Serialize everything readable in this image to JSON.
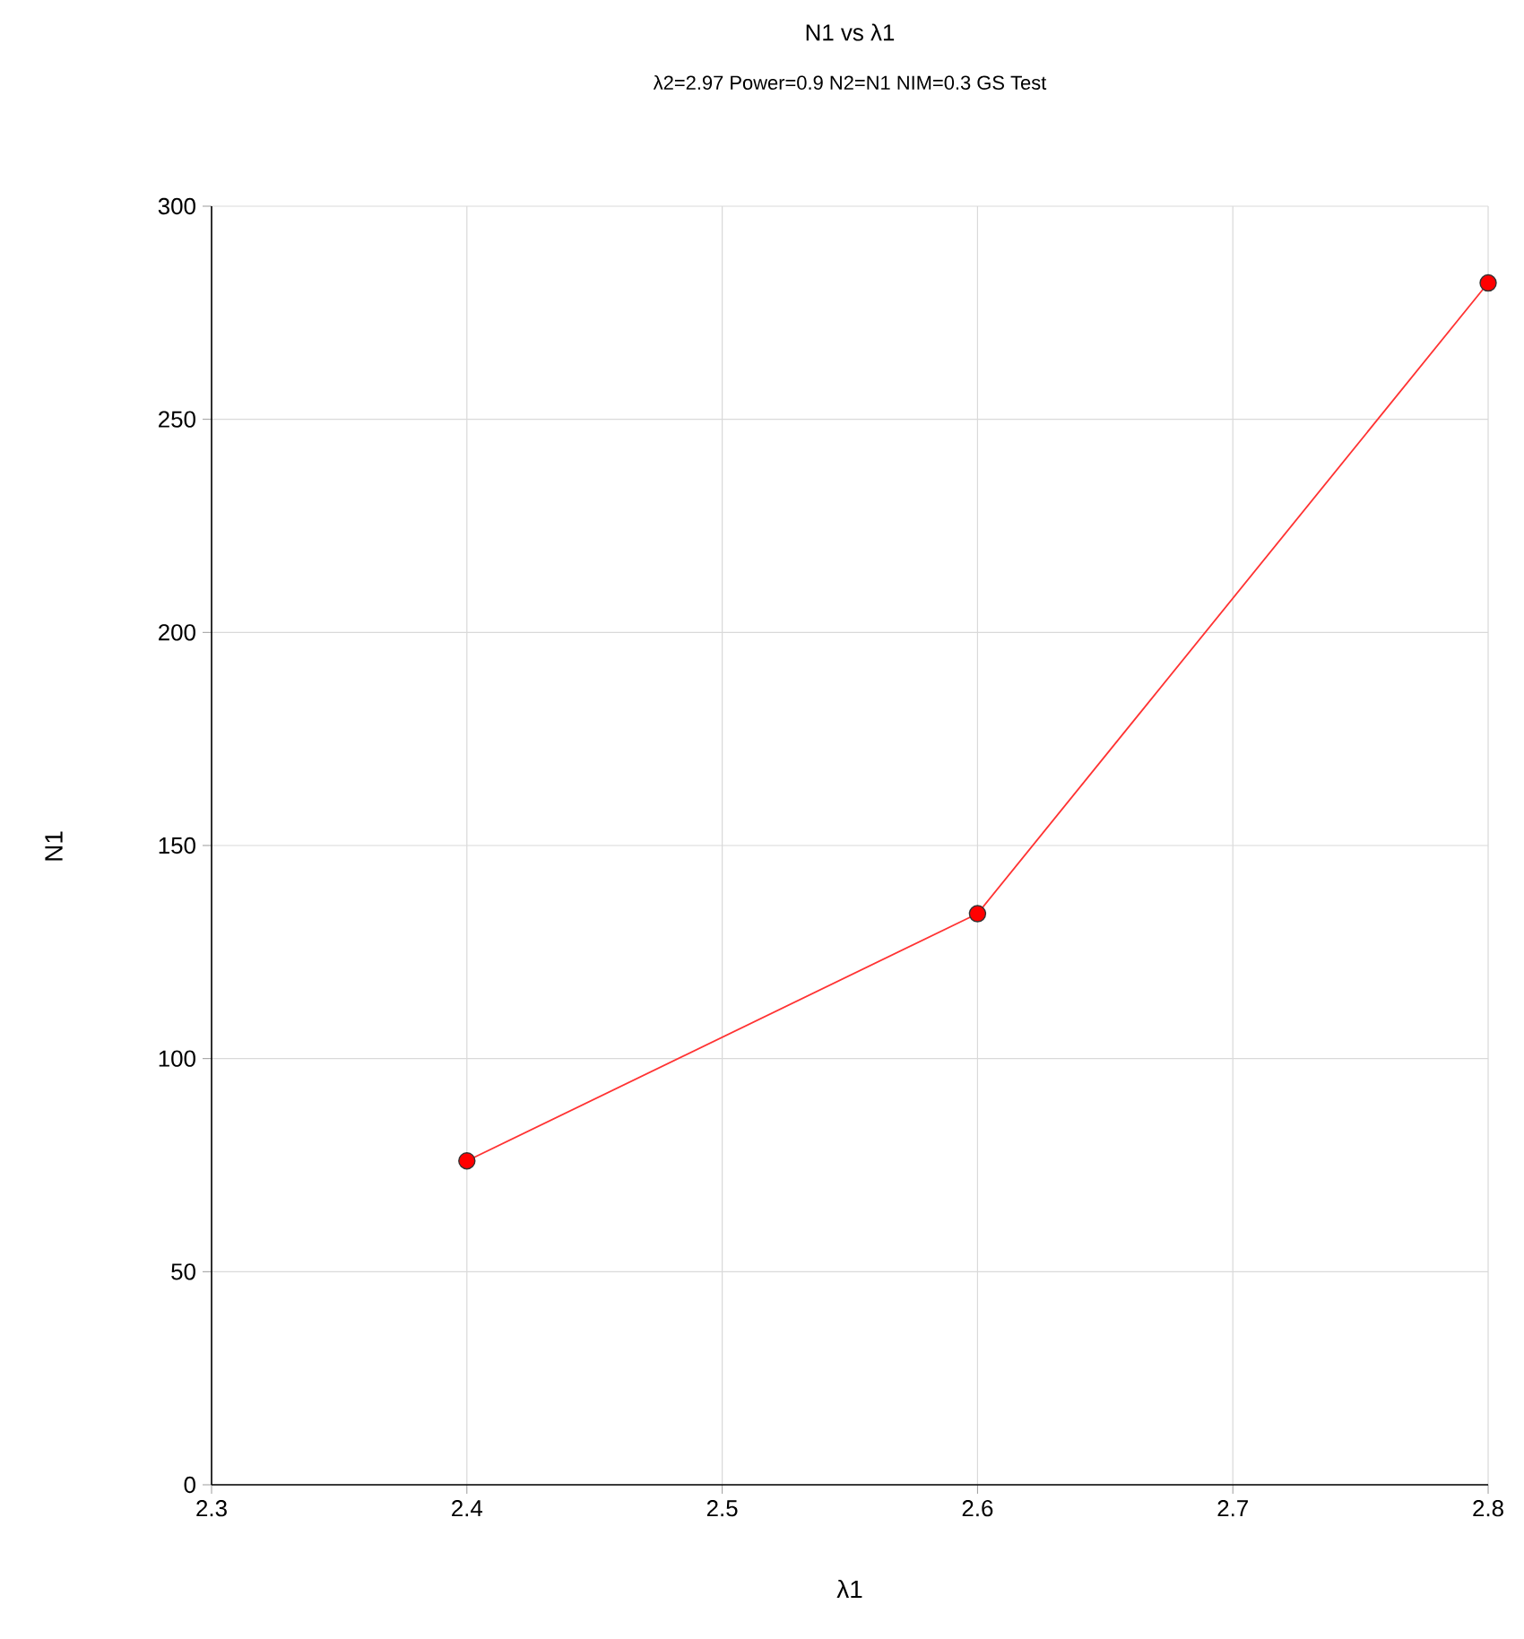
{
  "chart_data": {
    "type": "line",
    "title": "N1 vs λ1",
    "subtitle": "λ2=2.97 Power=0.9 N2=N1 NIM=0.3 GS Test",
    "xlabel": "λ1",
    "ylabel": "N1",
    "x": [
      2.4,
      2.6,
      2.8
    ],
    "series": [
      {
        "color": "#ff3333",
        "values": [
          76,
          134,
          282
        ]
      }
    ],
    "xlim": [
      2.3,
      2.8
    ],
    "xticks": [
      2.3,
      2.4,
      2.5,
      2.6,
      2.7,
      2.8
    ],
    "ylim": [
      0,
      300
    ],
    "yticks": [
      0,
      50,
      100,
      150,
      200,
      250,
      300
    ],
    "grid": true,
    "marker": "circle",
    "line_style": "solid"
  }
}
